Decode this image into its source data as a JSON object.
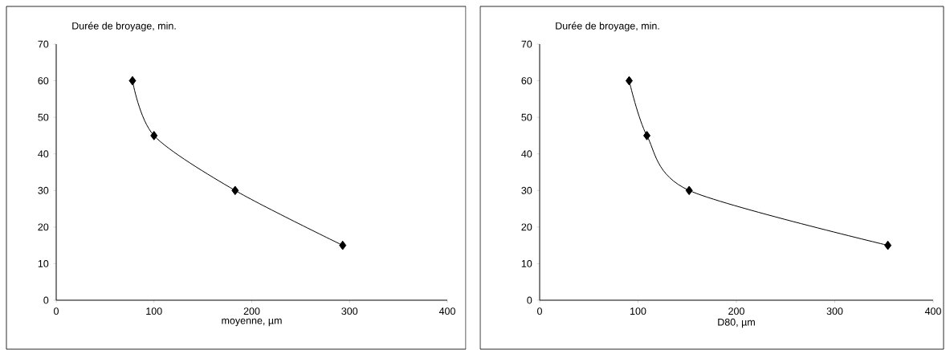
{
  "chart_data": [
    {
      "type": "line",
      "xlabel": "moyenne, µm",
      "ylabel": "Durée de broyage, min.",
      "x": [
        78,
        100,
        183,
        293
      ],
      "values": [
        60,
        45,
        30,
        15
      ],
      "color": "#000000",
      "marker": "diamond",
      "xlim": [
        0,
        400
      ],
      "xticks": [
        0,
        100,
        200,
        300,
        400
      ],
      "ylim": [
        0,
        70
      ],
      "yticks": [
        0,
        10,
        20,
        30,
        40,
        50,
        60,
        70
      ],
      "grid": false
    },
    {
      "type": "line",
      "xlabel": "D80, µm",
      "ylabel": "Durée de broyage, min.",
      "x": [
        91,
        109,
        152,
        354
      ],
      "values": [
        60,
        45,
        30,
        15
      ],
      "color": "#000000",
      "marker": "diamond",
      "xlim": [
        0,
        400
      ],
      "xticks": [
        0,
        100,
        200,
        300,
        400
      ],
      "ylim": [
        0,
        70
      ],
      "yticks": [
        0,
        10,
        20,
        30,
        40,
        50,
        60,
        70
      ],
      "grid": false
    }
  ]
}
